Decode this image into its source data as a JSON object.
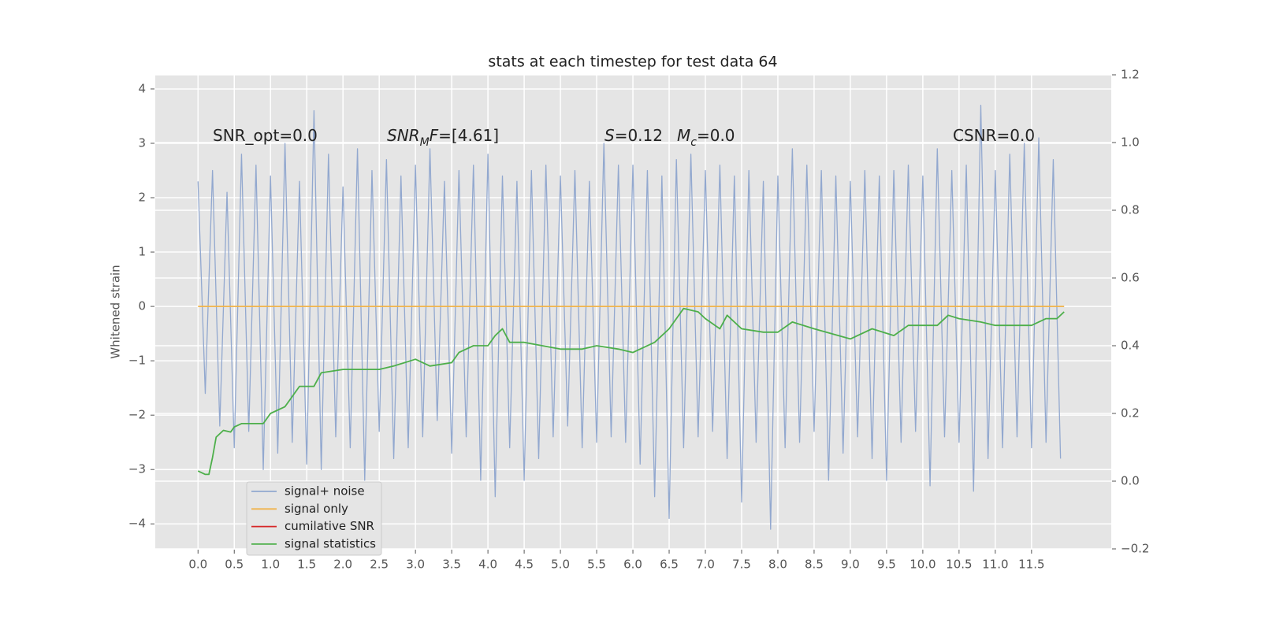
{
  "chart_data": {
    "type": "line",
    "title": "stats at each timestep for test data 64",
    "ylabel": "Whitened strain",
    "grid": true,
    "legend": "lower left",
    "xlim": [
      -0.59,
      12.6
    ],
    "ylim": [
      -4.46,
      4.26
    ],
    "y2lim": [
      -0.2,
      1.2
    ],
    "xticks": [
      {
        "value": 0,
        "label": "0.0"
      },
      {
        "value": 0.5,
        "label": "0.5"
      },
      {
        "value": 1,
        "label": "1.0"
      },
      {
        "value": 1.5,
        "label": "1.5"
      },
      {
        "value": 2,
        "label": "2.0"
      },
      {
        "value": 2.5,
        "label": "2.5"
      },
      {
        "value": 3,
        "label": "3.0"
      },
      {
        "value": 3.5,
        "label": "3.5"
      },
      {
        "value": 4,
        "label": "4.0"
      },
      {
        "value": 4.5,
        "label": "4.5"
      },
      {
        "value": 5,
        "label": "5.0"
      },
      {
        "value": 5.5,
        "label": "5.5"
      },
      {
        "value": 6,
        "label": "6.0"
      },
      {
        "value": 6.5,
        "label": "6.5"
      },
      {
        "value": 7,
        "label": "7.0"
      },
      {
        "value": 7.5,
        "label": "7.5"
      },
      {
        "value": 8,
        "label": "8.0"
      },
      {
        "value": 8.5,
        "label": "8.5"
      },
      {
        "value": 9,
        "label": "9.0"
      },
      {
        "value": 9.5,
        "label": "9.5"
      },
      {
        "value": 10,
        "label": "10.0"
      },
      {
        "value": 10.5,
        "label": "10.5"
      },
      {
        "value": 11,
        "label": "11.0"
      },
      {
        "value": 11.5,
        "label": "11.5"
      }
    ],
    "yticks": [
      {
        "value": -4,
        "label": "−4"
      },
      {
        "value": -3,
        "label": "−3"
      },
      {
        "value": -2,
        "label": "−2"
      },
      {
        "value": -1,
        "label": "−1"
      },
      0,
      1,
      2,
      3,
      4
    ],
    "y2ticks": [
      {
        "value": -0.2,
        "label": "−0.2"
      },
      {
        "value": 0,
        "label": "0.0"
      },
      {
        "value": 0.2,
        "label": "0.2"
      },
      {
        "value": 0.4,
        "label": "0.4"
      },
      {
        "value": 0.6,
        "label": "0.6"
      },
      {
        "value": 0.8,
        "label": "0.8"
      },
      {
        "value": 1,
        "label": "1.0"
      },
      {
        "value": 1.2,
        "label": "1.2"
      }
    ],
    "annotations": [
      {
        "parts": [
          {
            "text": "SNR_opt=0.0"
          }
        ]
      },
      {
        "parts": [
          {
            "text": "SNR",
            "italic": true
          },
          {
            "text": "M",
            "italic": true,
            "sub": true
          },
          {
            "text": "F",
            "italic": true
          },
          {
            "text": "=[4.61]"
          }
        ]
      },
      {
        "parts": [
          {
            "text": "S",
            "italic": true
          },
          {
            "text": "=0.12"
          }
        ]
      },
      {
        "parts": [
          {
            "text": "M",
            "italic": true
          },
          {
            "text": "c",
            "italic": true,
            "sub": true
          },
          {
            "text": "=0.0"
          }
        ]
      },
      {
        "parts": [
          {
            "text": "CSNR=0.0"
          }
        ]
      }
    ],
    "series": [
      {
        "name": "signal+ noise",
        "color": "#92a8cf",
        "x": [
          0.0,
          0.1,
          0.2,
          0.3,
          0.4,
          0.5,
          0.6,
          0.7,
          0.8,
          0.9,
          1.0,
          1.1,
          1.2,
          1.3,
          1.4,
          1.5,
          1.6,
          1.7,
          1.8,
          1.9,
          2.0,
          2.1,
          2.2,
          2.3,
          2.4,
          2.5,
          2.6,
          2.7,
          2.8,
          2.9,
          3.0,
          3.1,
          3.2,
          3.3,
          3.4,
          3.5,
          3.6,
          3.7,
          3.8,
          3.9,
          4.0,
          4.1,
          4.2,
          4.3,
          4.4,
          4.5,
          4.6,
          4.7,
          4.8,
          4.9,
          5.0,
          5.1,
          5.2,
          5.3,
          5.4,
          5.5,
          5.6,
          5.7,
          5.8,
          5.9,
          6.0,
          6.1,
          6.2,
          6.3,
          6.4,
          6.5,
          6.6,
          6.7,
          6.8,
          6.9,
          7.0,
          7.1,
          7.2,
          7.3,
          7.4,
          7.5,
          7.6,
          7.7,
          7.8,
          7.9,
          8.0,
          8.1,
          8.2,
          8.3,
          8.4,
          8.5,
          8.6,
          8.7,
          8.8,
          8.9,
          9.0,
          9.1,
          9.2,
          9.3,
          9.4,
          9.5,
          9.6,
          9.7,
          9.8,
          9.9,
          10.0,
          10.1,
          10.2,
          10.3,
          10.4,
          10.5,
          10.6,
          10.7,
          10.8,
          10.9,
          11.0,
          11.1,
          11.2,
          11.3,
          11.4,
          11.5,
          11.6,
          11.7,
          11.8,
          11.9
        ],
        "values": [
          2.3,
          -1.6,
          2.5,
          -2.2,
          2.1,
          -2.6,
          2.8,
          -2.3,
          2.6,
          -3.0,
          2.4,
          -2.7,
          3.0,
          -2.5,
          2.3,
          -2.9,
          3.6,
          -3.0,
          2.8,
          -2.4,
          2.2,
          -2.6,
          2.9,
          -3.2,
          2.5,
          -2.3,
          2.7,
          -2.8,
          2.4,
          -2.6,
          2.6,
          -2.4,
          2.9,
          -2.1,
          2.3,
          -2.7,
          2.5,
          -2.4,
          2.6,
          -3.2,
          2.8,
          -3.5,
          2.4,
          -2.6,
          2.3,
          -3.2,
          2.5,
          -2.8,
          2.6,
          -2.4,
          2.4,
          -2.2,
          2.5,
          -2.6,
          2.3,
          -2.5,
          3.0,
          -2.4,
          2.6,
          -2.5,
          2.6,
          -2.9,
          2.5,
          -3.5,
          2.4,
          -3.9,
          2.7,
          -2.6,
          2.8,
          -2.4,
          2.5,
          -2.3,
          2.6,
          -2.8,
          2.4,
          -3.6,
          2.5,
          -2.5,
          2.3,
          -4.1,
          2.4,
          -2.6,
          2.9,
          -2.5,
          2.6,
          -2.3,
          2.5,
          -3.2,
          2.4,
          -2.7,
          2.3,
          -2.4,
          2.5,
          -2.8,
          2.4,
          -3.2,
          2.5,
          -2.5,
          2.6,
          -2.3,
          2.4,
          -3.3,
          2.9,
          -2.4,
          2.5,
          -2.5,
          2.6,
          -3.4,
          3.7,
          -2.8,
          2.5,
          -2.6,
          2.8,
          -2.4,
          3.0,
          -2.6,
          3.1,
          -2.5,
          2.7,
          -2.8
        ]
      },
      {
        "name": "signal only",
        "color": "#f0b44c",
        "x": [
          0,
          11.95
        ],
        "values": [
          0,
          0
        ]
      },
      {
        "name": "cumilative SNR",
        "color": "#d62728",
        "x": [],
        "values": []
      },
      {
        "name": "signal statistics",
        "color": "#4daf4a",
        "axis": "y2",
        "x": [
          0,
          0.1,
          0.15,
          0.2,
          0.25,
          0.35,
          0.45,
          0.5,
          0.6,
          0.75,
          0.9,
          1.0,
          1.2,
          1.4,
          1.6,
          1.7,
          2.0,
          2.2,
          2.5,
          2.7,
          3.0,
          3.2,
          3.5,
          3.6,
          3.8,
          4.0,
          4.1,
          4.2,
          4.3,
          4.5,
          5.0,
          5.3,
          5.5,
          5.8,
          6.0,
          6.3,
          6.5,
          6.7,
          6.9,
          7.0,
          7.2,
          7.3,
          7.5,
          7.8,
          8.0,
          8.2,
          8.5,
          9.0,
          9.3,
          9.6,
          9.8,
          10.2,
          10.35,
          10.5,
          10.8,
          11.0,
          11.2,
          11.5,
          11.7,
          11.85,
          11.95
        ],
        "values": [
          0.03,
          0.02,
          0.02,
          0.07,
          0.13,
          0.15,
          0.145,
          0.16,
          0.17,
          0.17,
          0.17,
          0.2,
          0.22,
          0.28,
          0.28,
          0.32,
          0.33,
          0.33,
          0.33,
          0.34,
          0.36,
          0.34,
          0.35,
          0.38,
          0.4,
          0.4,
          0.43,
          0.45,
          0.41,
          0.41,
          0.39,
          0.39,
          0.4,
          0.39,
          0.38,
          0.41,
          0.45,
          0.51,
          0.5,
          0.48,
          0.45,
          0.49,
          0.45,
          0.44,
          0.44,
          0.47,
          0.45,
          0.42,
          0.45,
          0.43,
          0.46,
          0.46,
          0.49,
          0.48,
          0.47,
          0.46,
          0.46,
          0.46,
          0.48,
          0.48,
          0.5
        ]
      }
    ]
  }
}
